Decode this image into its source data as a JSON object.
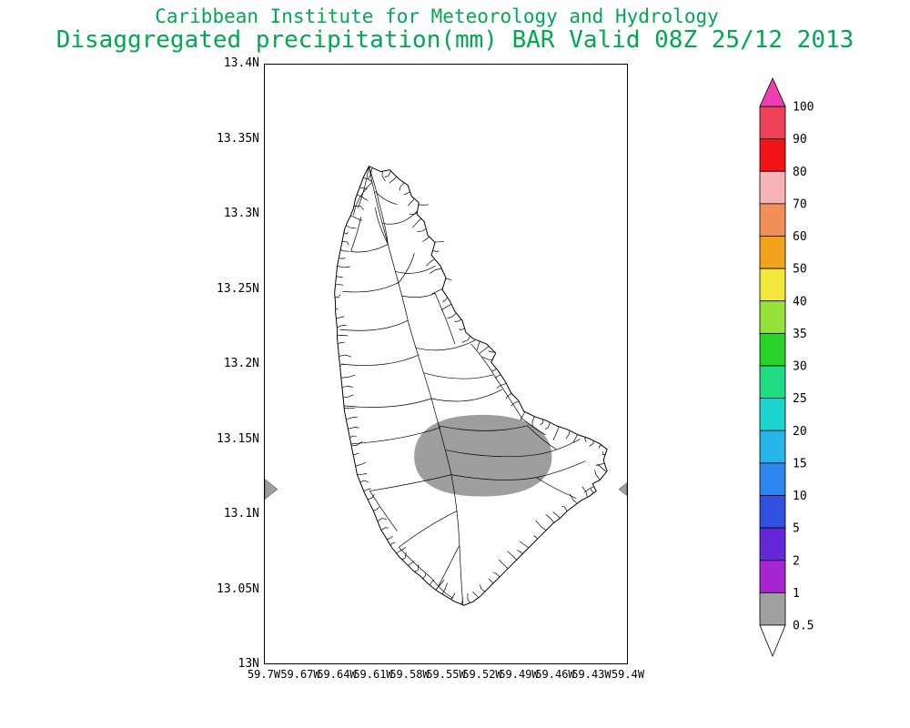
{
  "title": {
    "line1": "Caribbean Institute for Meteorology and Hydrology",
    "line2": "Disaggregated precipitation(mm) BAR Valid 08Z 25/12 2013",
    "color": "#00a850"
  },
  "map": {
    "region": "Barbados",
    "lat_tick_labels": [
      "13.4N",
      "13.35N",
      "13.3N",
      "13.25N",
      "13.2N",
      "13.15N",
      "13.1N",
      "13.05N",
      "13N"
    ],
    "lon_tick_labels": [
      "59.7W",
      "59.67W",
      "59.64W",
      "59.61W",
      "59.58W",
      "59.55W",
      "59.52W",
      "59.49W",
      "59.46W",
      "59.43W",
      "59.4W"
    ],
    "outline_color": "#000000",
    "shaded_region": {
      "value_range_mm": "0.5 to 1",
      "color": "#9e9e9e",
      "approx_center": {
        "lat": "13.14N",
        "lon": "59.52W"
      }
    }
  },
  "colorbar": {
    "units": "mm",
    "tick_labels": [
      "100",
      "90",
      "80",
      "70",
      "60",
      "50",
      "40",
      "35",
      "30",
      "25",
      "20",
      "15",
      "10",
      "5",
      "2",
      "1",
      "0.5"
    ],
    "band_colors_top_to_bottom": [
      "#ec4258",
      "#f21414",
      "#f7b4b8",
      "#f2905a",
      "#f0a41e",
      "#f2e83c",
      "#96e13c",
      "#28d228",
      "#1edc82",
      "#1ed2cd",
      "#28b4ea",
      "#2f86f0",
      "#3050e0",
      "#6428d8",
      "#a526d0",
      "#a0a0a0"
    ],
    "above_max_arrow_color": "#ee3eb4",
    "below_min_arrow_color": "#ffffff"
  },
  "chart_data": {
    "type": "filled-contour precipitation map",
    "title": "Disaggregated precipitation(mm) BAR Valid 08Z 25/12 2013",
    "institution": "Caribbean Institute for Meteorology and Hydrology",
    "region_code": "BAR",
    "valid_time": "08Z 25/12 2013",
    "units": "mm",
    "lat_range": [
      "13N",
      "13.4N"
    ],
    "lon_range": [
      "59.7W",
      "59.4W"
    ],
    "contour_levels": [
      0.5,
      1,
      2,
      5,
      10,
      15,
      20,
      25,
      30,
      35,
      40,
      50,
      60,
      70,
      80,
      90,
      100
    ],
    "filled_regions": [
      {
        "range_mm": [
          0.5,
          1
        ],
        "color": "#9e9e9e",
        "description": "Single gray shaded oval over the south-central interior of Barbados, approx 13.11N-13.16N, 59.55W-59.49W"
      }
    ]
  }
}
